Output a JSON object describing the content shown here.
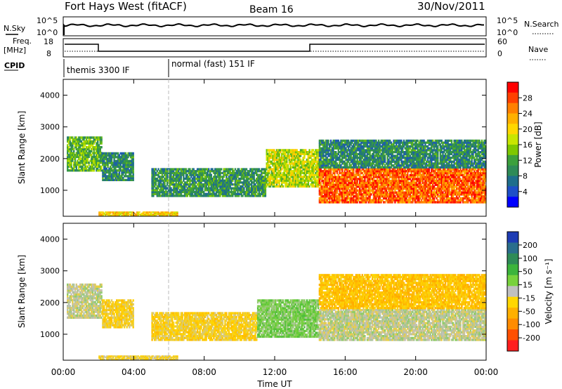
{
  "header": {
    "title": "Fort Hays West (fitACF)",
    "beam": "Beam 16",
    "date": "30/Nov/2011"
  },
  "status_panels": {
    "nsky_label": "N.Sky",
    "nsky_ticks": [
      "10^5",
      "10^0"
    ],
    "nsearch_label": "N.Search",
    "nsearch_ticks": [
      "10^5",
      "10^0"
    ],
    "freq_label_top": "Freq.",
    "freq_label_bottom": "[MHz]",
    "freq_ticks": [
      "18",
      "8"
    ],
    "nave_label": "Nave",
    "nave_ticks": [
      "60",
      "0"
    ],
    "cpid_label": "CPID",
    "modes": [
      {
        "label": "themis 3300 IF",
        "start_hour": 0,
        "end_hour": 6
      },
      {
        "label": "normal (fast) 151 IF",
        "start_hour": 6,
        "end_hour": 24
      }
    ]
  },
  "power_colorbar": {
    "title": "Power [dB]",
    "ticks": [
      "28",
      "24",
      "20",
      "16",
      "12",
      "8",
      "4"
    ],
    "colors": [
      "#ff0000",
      "#ff4000",
      "#ff8000",
      "#ffb000",
      "#ffd700",
      "#c8e600",
      "#7ec800",
      "#3ca03c",
      "#2e8b57",
      "#1e6e8c",
      "#1e4fc8",
      "#0000ff"
    ]
  },
  "velocity_colorbar": {
    "title": "Velocity [m s⁻¹]",
    "ticks": [
      "200",
      "100",
      "50",
      "15",
      "-15",
      "-50",
      "-100",
      "-200"
    ],
    "colors": [
      "#1e3cb4",
      "#2a6e8c",
      "#2e8b57",
      "#3cb43c",
      "#78d23c",
      "#c0c0c0",
      "#ffd700",
      "#ffb000",
      "#ff8c00",
      "#ff5000",
      "#ff1e1e"
    ]
  },
  "chart_data": [
    {
      "type": "heatmap",
      "panel": "power",
      "ylabel": "Slant Range [km]",
      "xlabel": "",
      "ylim": [
        180,
        4500
      ],
      "xlim_hours": [
        0,
        24
      ],
      "yticks": [
        1000,
        2000,
        3000,
        4000
      ],
      "colorbar_label": "Power [dB]",
      "colorbar_range": [
        0,
        30
      ],
      "regions": [
        {
          "t0": 0.2,
          "t1": 2.2,
          "r0": 1600,
          "r1": 2700,
          "value": 12
        },
        {
          "t0": 2.2,
          "t1": 4.0,
          "r0": 1300,
          "r1": 2200,
          "value": 8
        },
        {
          "t0": 5.0,
          "t1": 11.5,
          "r0": 800,
          "r1": 1700,
          "value": 9
        },
        {
          "t0": 11.5,
          "t1": 14.5,
          "r0": 1100,
          "r1": 2300,
          "value": 16
        },
        {
          "t0": 14.5,
          "t1": 24.0,
          "r0": 600,
          "r1": 1700,
          "value": 26
        },
        {
          "t0": 14.5,
          "t1": 24.0,
          "r0": 1700,
          "r1": 2600,
          "value": 8
        },
        {
          "t0": 2.0,
          "t1": 6.5,
          "r0": 200,
          "r1": 330,
          "value": 20
        }
      ]
    },
    {
      "type": "heatmap",
      "panel": "velocity",
      "ylabel": "Slant Range [km]",
      "xlabel": "Time UT",
      "ylim": [
        180,
        4500
      ],
      "xlim_hours": [
        0,
        24
      ],
      "yticks": [
        1000,
        2000,
        3000,
        4000
      ],
      "xticks": [
        "00:00",
        "04:00",
        "08:00",
        "12:00",
        "16:00",
        "20:00",
        "00:00"
      ],
      "colorbar_label": "Velocity [m s⁻¹]",
      "colorbar_range": [
        -200,
        200
      ],
      "regions": [
        {
          "t0": 0.2,
          "t1": 2.2,
          "r0": 1500,
          "r1": 2600,
          "value": 0
        },
        {
          "t0": 2.2,
          "t1": 4.0,
          "r0": 1200,
          "r1": 2100,
          "value": -40
        },
        {
          "t0": 5.0,
          "t1": 11.0,
          "r0": 800,
          "r1": 1700,
          "value": -40
        },
        {
          "t0": 11.0,
          "t1": 14.5,
          "r0": 900,
          "r1": 2100,
          "value": 40
        },
        {
          "t0": 14.5,
          "t1": 24.0,
          "r0": 800,
          "r1": 1800,
          "value": 0
        },
        {
          "t0": 14.5,
          "t1": 24.0,
          "r0": 1800,
          "r1": 2900,
          "value": -60
        },
        {
          "t0": 2.0,
          "t1": 6.5,
          "r0": 200,
          "r1": 330,
          "value": -30
        }
      ]
    }
  ]
}
